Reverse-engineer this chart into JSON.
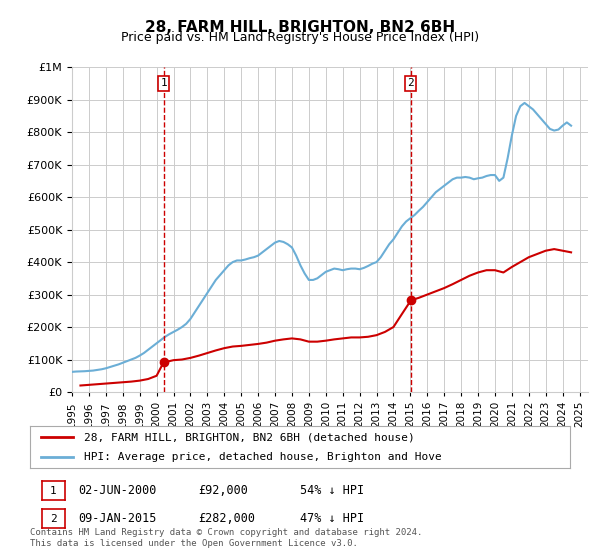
{
  "title": "28, FARM HILL, BRIGHTON, BN2 6BH",
  "subtitle": "Price paid vs. HM Land Registry's House Price Index (HPI)",
  "ylabel_top": "£1M",
  "ylim": [
    0,
    1000000
  ],
  "yticks": [
    0,
    100000,
    200000,
    300000,
    400000,
    500000,
    600000,
    700000,
    800000,
    900000,
    1000000
  ],
  "ytick_labels": [
    "£0",
    "£100K",
    "£200K",
    "£300K",
    "£400K",
    "£500K",
    "£600K",
    "£700K",
    "£800K",
    "£900K",
    "£1M"
  ],
  "xlim_start": 1995.0,
  "xlim_end": 2025.5,
  "sale1_x": 2000.42,
  "sale1_y": 92000,
  "sale2_x": 2015.03,
  "sale2_y": 282000,
  "sale1_label": "1",
  "sale2_label": "2",
  "vline1_x": 2000.42,
  "vline2_x": 2015.03,
  "hpi_color": "#6baed6",
  "price_color": "#cc0000",
  "vline_color": "#cc0000",
  "background_color": "#ffffff",
  "grid_color": "#cccccc",
  "legend_line1": "28, FARM HILL, BRIGHTON, BN2 6BH (detached house)",
  "legend_line2": "HPI: Average price, detached house, Brighton and Hove",
  "annotation1": "02-JUN-2000",
  "annotation1_price": "£92,000",
  "annotation1_hpi": "54% ↓ HPI",
  "annotation2": "09-JAN-2015",
  "annotation2_price": "£282,000",
  "annotation2_hpi": "47% ↓ HPI",
  "footer": "Contains HM Land Registry data © Crown copyright and database right 2024.\nThis data is licensed under the Open Government Licence v3.0.",
  "title_fontsize": 11,
  "subtitle_fontsize": 9.5,
  "tick_fontsize": 8,
  "hpi_data_x": [
    1995.0,
    1995.25,
    1995.5,
    1995.75,
    1996.0,
    1996.25,
    1996.5,
    1996.75,
    1997.0,
    1997.25,
    1997.5,
    1997.75,
    1998.0,
    1998.25,
    1998.5,
    1998.75,
    1999.0,
    1999.25,
    1999.5,
    1999.75,
    2000.0,
    2000.25,
    2000.5,
    2000.75,
    2001.0,
    2001.25,
    2001.5,
    2001.75,
    2002.0,
    2002.25,
    2002.5,
    2002.75,
    2003.0,
    2003.25,
    2003.5,
    2003.75,
    2004.0,
    2004.25,
    2004.5,
    2004.75,
    2005.0,
    2005.25,
    2005.5,
    2005.75,
    2006.0,
    2006.25,
    2006.5,
    2006.75,
    2007.0,
    2007.25,
    2007.5,
    2007.75,
    2008.0,
    2008.25,
    2008.5,
    2008.75,
    2009.0,
    2009.25,
    2009.5,
    2009.75,
    2010.0,
    2010.25,
    2010.5,
    2010.75,
    2011.0,
    2011.25,
    2011.5,
    2011.75,
    2012.0,
    2012.25,
    2012.5,
    2012.75,
    2013.0,
    2013.25,
    2013.5,
    2013.75,
    2014.0,
    2014.25,
    2014.5,
    2014.75,
    2015.0,
    2015.25,
    2015.5,
    2015.75,
    2016.0,
    2016.25,
    2016.5,
    2016.75,
    2017.0,
    2017.25,
    2017.5,
    2017.75,
    2018.0,
    2018.25,
    2018.5,
    2018.75,
    2019.0,
    2019.25,
    2019.5,
    2019.75,
    2020.0,
    2020.25,
    2020.5,
    2020.75,
    2021.0,
    2021.25,
    2021.5,
    2021.75,
    2022.0,
    2022.25,
    2022.5,
    2022.75,
    2023.0,
    2023.25,
    2023.5,
    2023.75,
    2024.0,
    2024.25,
    2024.5
  ],
  "hpi_data_y": [
    62000,
    63000,
    63500,
    64000,
    65000,
    66000,
    68000,
    70000,
    73000,
    77000,
    81000,
    85000,
    90000,
    95000,
    100000,
    105000,
    112000,
    120000,
    130000,
    140000,
    150000,
    160000,
    170000,
    178000,
    185000,
    192000,
    200000,
    210000,
    225000,
    245000,
    265000,
    285000,
    305000,
    325000,
    345000,
    360000,
    375000,
    390000,
    400000,
    405000,
    405000,
    408000,
    412000,
    415000,
    420000,
    430000,
    440000,
    450000,
    460000,
    465000,
    462000,
    455000,
    445000,
    420000,
    390000,
    365000,
    345000,
    345000,
    350000,
    360000,
    370000,
    375000,
    380000,
    378000,
    375000,
    378000,
    380000,
    380000,
    378000,
    382000,
    388000,
    395000,
    400000,
    415000,
    435000,
    455000,
    470000,
    490000,
    510000,
    525000,
    535000,
    545000,
    558000,
    570000,
    585000,
    600000,
    615000,
    625000,
    635000,
    645000,
    655000,
    660000,
    660000,
    662000,
    660000,
    655000,
    658000,
    660000,
    665000,
    668000,
    668000,
    650000,
    660000,
    720000,
    790000,
    850000,
    880000,
    890000,
    880000,
    870000,
    855000,
    840000,
    825000,
    810000,
    805000,
    808000,
    820000,
    830000,
    820000
  ],
  "price_data_x": [
    1995.5,
    1996.0,
    1996.5,
    1997.0,
    1997.5,
    1998.0,
    1998.5,
    1999.0,
    1999.5,
    2000.0,
    2000.42,
    2000.75,
    2001.0,
    2001.5,
    2002.0,
    2002.5,
    2003.0,
    2003.5,
    2004.0,
    2004.5,
    2005.0,
    2005.5,
    2006.0,
    2006.5,
    2007.0,
    2007.5,
    2008.0,
    2008.5,
    2009.0,
    2009.5,
    2010.0,
    2010.5,
    2011.0,
    2011.5,
    2012.0,
    2012.5,
    2013.0,
    2013.5,
    2014.0,
    2014.5,
    2015.03,
    2015.5,
    2016.0,
    2016.5,
    2017.0,
    2017.5,
    2018.0,
    2018.5,
    2019.0,
    2019.5,
    2020.0,
    2020.5,
    2021.0,
    2021.5,
    2022.0,
    2022.5,
    2023.0,
    2023.5,
    2024.0,
    2024.5
  ],
  "price_data_y": [
    20000,
    22000,
    24000,
    26000,
    28000,
    30000,
    32000,
    35000,
    40000,
    50000,
    92000,
    95000,
    98000,
    100000,
    105000,
    112000,
    120000,
    128000,
    135000,
    140000,
    142000,
    145000,
    148000,
    152000,
    158000,
    162000,
    165000,
    162000,
    155000,
    155000,
    158000,
    162000,
    165000,
    168000,
    168000,
    170000,
    175000,
    185000,
    200000,
    240000,
    282000,
    290000,
    300000,
    310000,
    320000,
    332000,
    345000,
    358000,
    368000,
    375000,
    375000,
    368000,
    385000,
    400000,
    415000,
    425000,
    435000,
    440000,
    435000,
    430000
  ]
}
